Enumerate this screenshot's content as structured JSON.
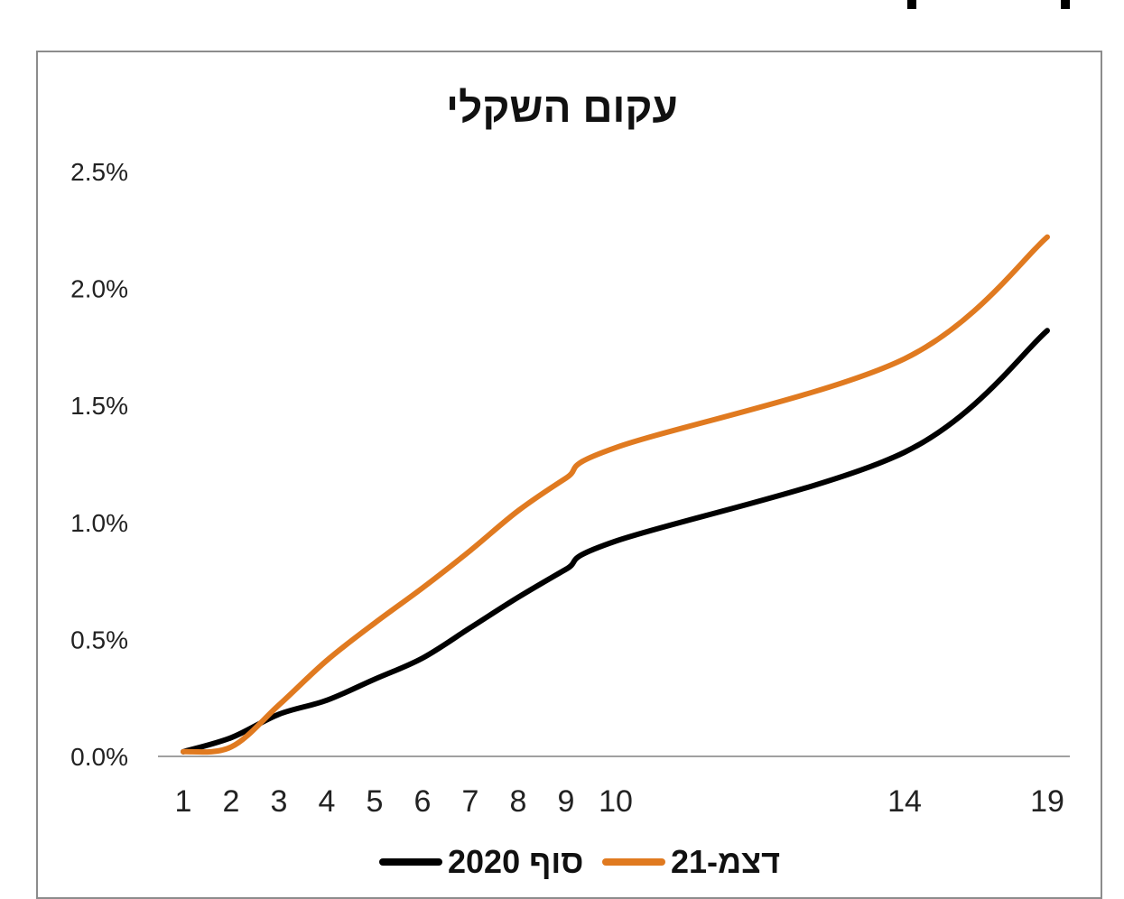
{
  "chart_data": {
    "type": "line",
    "title": "עקום השקלי",
    "xlabel": "",
    "ylabel": "",
    "x": [
      1,
      2,
      3,
      4,
      5,
      6,
      7,
      8,
      9,
      10,
      14,
      19
    ],
    "x_tick_labels": [
      "1",
      "2",
      "3",
      "4",
      "5",
      "6",
      "7",
      "8",
      "9",
      "10",
      "14",
      "19"
    ],
    "y_tick_labels": [
      "0.0%",
      "0.5%",
      "1.0%",
      "1.5%",
      "2.0%",
      "2.5%"
    ],
    "ylim": [
      0,
      2.5
    ],
    "y_unit": "%",
    "grid": false,
    "legend_position": "bottom",
    "series": [
      {
        "name": "סוף 2020",
        "color": "#000000",
        "values": [
          0.02,
          0.08,
          0.18,
          0.24,
          0.33,
          0.42,
          0.55,
          0.68,
          0.8,
          0.92,
          1.3,
          1.82
        ]
      },
      {
        "name": "דצמ-21",
        "color": "#e07a20",
        "values": [
          0.02,
          0.04,
          0.22,
          0.41,
          0.57,
          0.72,
          0.88,
          1.05,
          1.19,
          1.32,
          1.7,
          2.22
        ]
      }
    ]
  }
}
